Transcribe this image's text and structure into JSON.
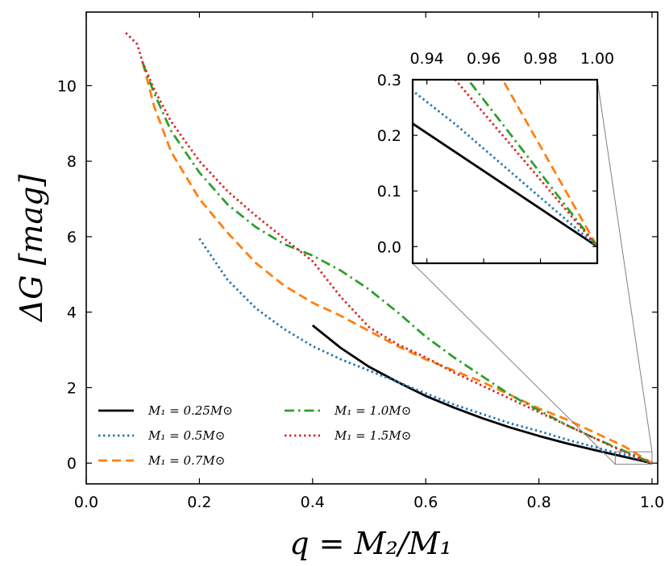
{
  "chart_data": {
    "type": "line",
    "title": "",
    "xlabel": "q = M₂/M₁",
    "ylabel": "ΔG [mag]",
    "xlim": [
      0.0,
      1.01
    ],
    "ylim": [
      -0.55,
      11.95
    ],
    "xticks": [
      0.0,
      0.2,
      0.4,
      0.6,
      0.8,
      1.0
    ],
    "xtick_labels": [
      "0.0",
      "0.2",
      "0.4",
      "0.6",
      "0.8",
      "1.0"
    ],
    "yticks": [
      0,
      2,
      4,
      6,
      8,
      10
    ],
    "ytick_labels": [
      "0",
      "2",
      "4",
      "6",
      "8",
      "10"
    ],
    "legend_position": "lower-left",
    "series": [
      {
        "name": "M₁ = 0.25M⊙",
        "color": "#000000",
        "style": "solid",
        "x": [
          0.4,
          0.45,
          0.5,
          0.55,
          0.6,
          0.65,
          0.7,
          0.75,
          0.8,
          0.85,
          0.9,
          0.95,
          1.0
        ],
        "y": [
          3.65,
          3.05,
          2.55,
          2.15,
          1.78,
          1.47,
          1.19,
          0.94,
          0.72,
          0.52,
          0.34,
          0.17,
          0.0
        ]
      },
      {
        "name": "M₁ = 0.5M⊙",
        "color": "#1f77b4",
        "style": "dotted",
        "x": [
          0.2,
          0.25,
          0.3,
          0.35,
          0.4,
          0.45,
          0.5,
          0.55,
          0.6,
          0.65,
          0.7,
          0.75,
          0.8,
          0.85,
          0.9,
          0.95,
          1.0
        ],
        "y": [
          5.95,
          4.85,
          4.1,
          3.55,
          3.1,
          2.75,
          2.45,
          2.15,
          1.85,
          1.55,
          1.3,
          1.05,
          0.85,
          0.62,
          0.42,
          0.22,
          0.0
        ]
      },
      {
        "name": "M₁ = 0.7M⊙",
        "color": "#ff7f0e",
        "style": "dashed",
        "x": [
          0.1,
          0.12,
          0.15,
          0.2,
          0.25,
          0.3,
          0.35,
          0.4,
          0.45,
          0.5,
          0.55,
          0.6,
          0.65,
          0.7,
          0.75,
          0.8,
          0.85,
          0.9,
          0.95,
          1.0
        ],
        "y": [
          10.6,
          9.45,
          8.25,
          7.0,
          6.1,
          5.3,
          4.7,
          4.25,
          3.9,
          3.5,
          3.1,
          2.75,
          2.45,
          2.15,
          1.8,
          1.45,
          1.15,
          0.8,
          0.45,
          0.0
        ]
      },
      {
        "name": "M₁ = 1.0M⊙",
        "color": "#2ca02c",
        "style": "dashdot",
        "x": [
          0.1,
          0.12,
          0.15,
          0.2,
          0.25,
          0.3,
          0.35,
          0.4,
          0.45,
          0.5,
          0.55,
          0.6,
          0.65,
          0.7,
          0.75,
          0.8,
          0.85,
          0.9,
          0.95,
          1.0
        ],
        "y": [
          10.6,
          9.8,
          8.8,
          7.7,
          6.85,
          6.25,
          5.8,
          5.5,
          5.1,
          4.6,
          4.0,
          3.35,
          2.8,
          2.3,
          1.8,
          1.4,
          1.0,
          0.65,
          0.33,
          0.0
        ]
      },
      {
        "name": "M₁ = 1.5M⊙",
        "color": "#d62728",
        "style": "dotted",
        "x": [
          0.07,
          0.09,
          0.1,
          0.12,
          0.15,
          0.2,
          0.25,
          0.3,
          0.35,
          0.4,
          0.45,
          0.5,
          0.55,
          0.6,
          0.65,
          0.7,
          0.75,
          0.8,
          0.85,
          0.9,
          0.95,
          1.0
        ],
        "y": [
          11.4,
          11.1,
          10.6,
          9.9,
          9.05,
          8.0,
          7.2,
          6.55,
          5.95,
          5.35,
          4.4,
          3.6,
          3.15,
          2.8,
          2.4,
          2.05,
          1.7,
          1.35,
          1.0,
          0.65,
          0.3,
          0.0
        ]
      }
    ],
    "inset": {
      "xlim": [
        0.935,
        1.0
      ],
      "ylim": [
        -0.03,
        0.3
      ],
      "xticks": [
        0.94,
        0.96,
        0.98,
        1.0
      ],
      "xtick_labels": [
        "0.94",
        "0.96",
        "0.98",
        "1.00"
      ],
      "yticks": [
        0.0,
        0.1,
        0.2,
        0.3
      ],
      "ytick_labels": [
        "0.0",
        "0.1",
        "0.2",
        "0.3"
      ],
      "xaxis_position": "top"
    }
  }
}
